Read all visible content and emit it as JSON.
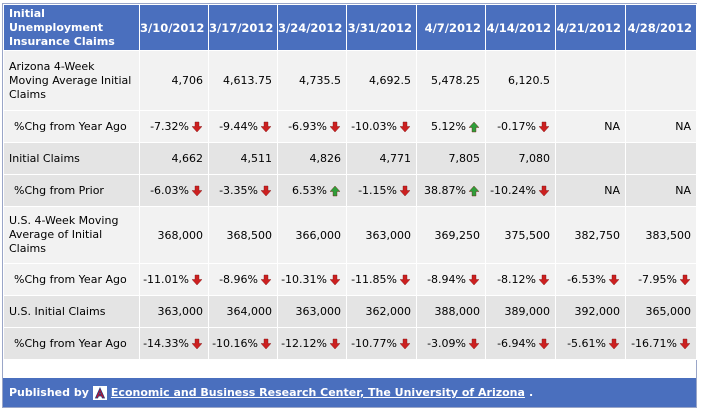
{
  "header": {
    "title": "Initial Unemployment Insurance Claims",
    "dates": [
      "3/10/2012",
      "3/17/2012",
      "3/24/2012",
      "3/31/2012",
      "4/7/2012",
      "4/14/2012",
      "4/21/2012",
      "4/28/2012"
    ]
  },
  "rows": [
    {
      "label": "Arizona 4-Week Moving Average Initial Claims",
      "style": "w",
      "height": "tall",
      "indent": false,
      "cells": [
        {
          "v": "4,706"
        },
        {
          "v": "4,613.75"
        },
        {
          "v": "4,735.5"
        },
        {
          "v": "4,692.5"
        },
        {
          "v": "5,478.25"
        },
        {
          "v": "6,120.5"
        },
        {
          "v": ""
        },
        {
          "v": ""
        }
      ]
    },
    {
      "label": "%Chg from Year Ago",
      "style": "w",
      "indent": true,
      "cells": [
        {
          "v": "-7.32%",
          "a": "down"
        },
        {
          "v": "-9.44%",
          "a": "down"
        },
        {
          "v": "-6.93%",
          "a": "down"
        },
        {
          "v": "-10.03%",
          "a": "down"
        },
        {
          "v": "5.12%",
          "a": "up"
        },
        {
          "v": "-0.17%",
          "a": "down"
        },
        {
          "v": "NA"
        },
        {
          "v": "NA"
        }
      ]
    },
    {
      "label": "Initial Claims",
      "style": "g",
      "indent": false,
      "cells": [
        {
          "v": "4,662"
        },
        {
          "v": "4,511"
        },
        {
          "v": "4,826"
        },
        {
          "v": "4,771"
        },
        {
          "v": "7,805"
        },
        {
          "v": "7,080"
        },
        {
          "v": ""
        },
        {
          "v": ""
        }
      ]
    },
    {
      "label": "%Chg from Prior",
      "style": "g",
      "indent": true,
      "cells": [
        {
          "v": "-6.03%",
          "a": "down"
        },
        {
          "v": "-3.35%",
          "a": "down"
        },
        {
          "v": "6.53%",
          "a": "up"
        },
        {
          "v": "-1.15%",
          "a": "down"
        },
        {
          "v": "38.87%",
          "a": "up"
        },
        {
          "v": "-10.24%",
          "a": "down"
        },
        {
          "v": "NA"
        },
        {
          "v": "NA"
        }
      ]
    },
    {
      "label": "U.S. 4-Week Moving Average of Initial Claims",
      "style": "w",
      "height": "t2",
      "indent": false,
      "cells": [
        {
          "v": "368,000"
        },
        {
          "v": "368,500"
        },
        {
          "v": "366,000"
        },
        {
          "v": "363,000"
        },
        {
          "v": "369,250"
        },
        {
          "v": "375,500"
        },
        {
          "v": "382,750"
        },
        {
          "v": "383,500"
        }
      ]
    },
    {
      "label": "%Chg from Year Ago",
      "style": "w",
      "indent": true,
      "cells": [
        {
          "v": "-11.01%",
          "a": "down"
        },
        {
          "v": "-8.96%",
          "a": "down"
        },
        {
          "v": "-10.31%",
          "a": "down"
        },
        {
          "v": "-11.85%",
          "a": "down"
        },
        {
          "v": "-8.94%",
          "a": "down"
        },
        {
          "v": "-8.12%",
          "a": "down"
        },
        {
          "v": "-6.53%",
          "a": "down"
        },
        {
          "v": "-7.95%",
          "a": "down"
        }
      ]
    },
    {
      "label": "U.S. Initial Claims",
      "style": "g",
      "indent": false,
      "cells": [
        {
          "v": "363,000"
        },
        {
          "v": "364,000"
        },
        {
          "v": "363,000"
        },
        {
          "v": "362,000"
        },
        {
          "v": "388,000"
        },
        {
          "v": "389,000"
        },
        {
          "v": "392,000"
        },
        {
          "v": "365,000"
        }
      ]
    },
    {
      "label": "%Chg from Year Ago",
      "style": "g",
      "indent": true,
      "cells": [
        {
          "v": "-14.33%",
          "a": "down"
        },
        {
          "v": "-10.16%",
          "a": "down"
        },
        {
          "v": "-12.12%",
          "a": "down"
        },
        {
          "v": "-10.77%",
          "a": "down"
        },
        {
          "v": "-3.09%",
          "a": "down"
        },
        {
          "v": "-6.94%",
          "a": "down"
        },
        {
          "v": "-5.61%",
          "a": "down"
        },
        {
          "v": "-16.71%",
          "a": "down"
        }
      ]
    }
  ],
  "icons": {
    "down": "down-arrow-icon",
    "up": "up-arrow-icon",
    "logo": "university-of-arizona-logo-icon"
  },
  "colors": {
    "header": "#4a6fbe",
    "down": "#cc2020",
    "up": "#2f9e3a"
  },
  "footer": {
    "prefix": "Published by",
    "link": "Economic and Business Research Center, The University of Arizona",
    "suffix": "."
  }
}
